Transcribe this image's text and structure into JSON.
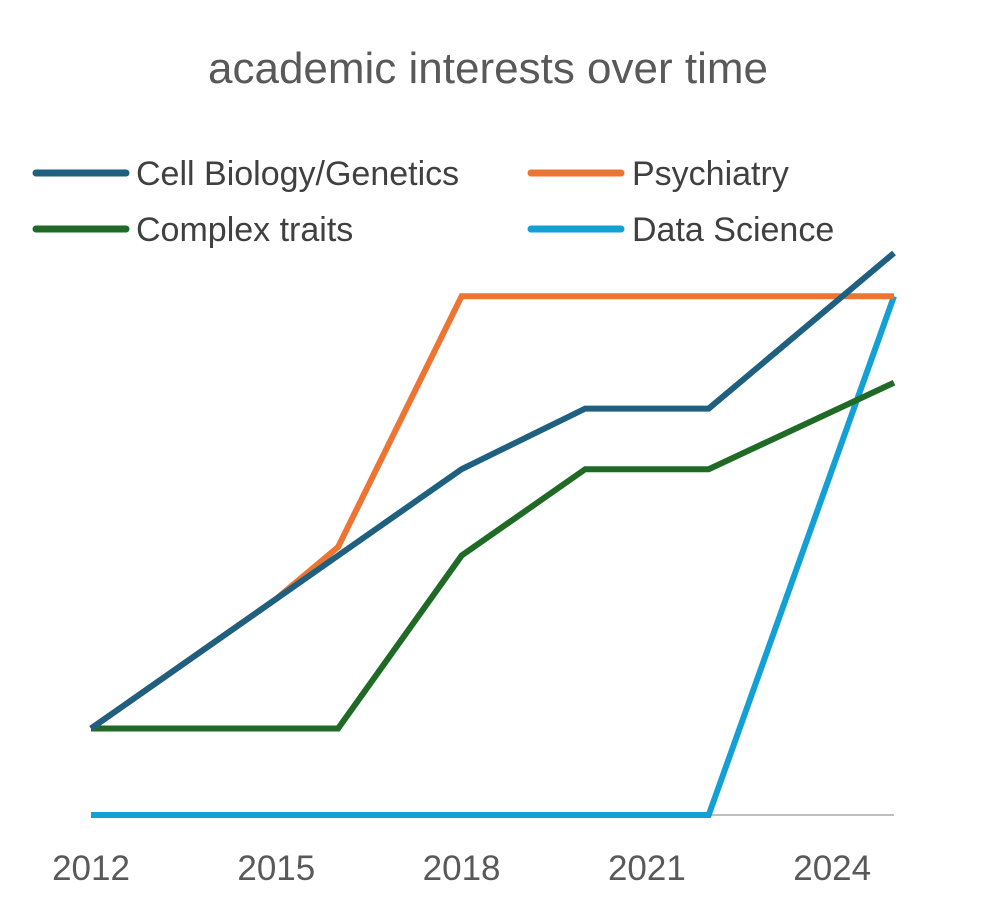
{
  "chart_data": {
    "type": "line",
    "title": "academic interests over time",
    "xlabel": "",
    "ylabel": "",
    "x": [
      2012,
      2013,
      2014,
      2015,
      2016,
      2017,
      2018,
      2019,
      2020,
      2021,
      2022,
      2023,
      2024,
      2025
    ],
    "x_tick_labels": [
      "2012",
      "2015",
      "2018",
      "2021",
      "2024"
    ],
    "ylim": [
      0,
      6.5
    ],
    "grid": false,
    "legend_position": "top",
    "series": [
      {
        "name": "Cell Biology/Genetics",
        "color": "#1f5f7f",
        "x": [
          2012,
          2016,
          2018,
          2020,
          2022,
          2025
        ],
        "y": [
          1.0,
          3.0,
          4.0,
          4.7,
          4.7,
          6.5
        ]
      },
      {
        "name": "Psychiatry",
        "color": "#ed7534",
        "x": [
          2012,
          2015,
          2016,
          2018,
          2025
        ],
        "y": [
          1.0,
          2.5,
          3.1,
          6.0,
          6.0
        ]
      },
      {
        "name": "Complex traits",
        "color": "#1f6b26",
        "x": [
          2012,
          2016,
          2018,
          2020,
          2022,
          2025
        ],
        "y": [
          1.0,
          1.0,
          3.0,
          4.0,
          4.0,
          5.0
        ]
      },
      {
        "name": "Data Science",
        "color": "#13a0d4",
        "x": [
          2012,
          2022,
          2025
        ],
        "y": [
          0.0,
          0.0,
          6.0
        ]
      }
    ]
  }
}
